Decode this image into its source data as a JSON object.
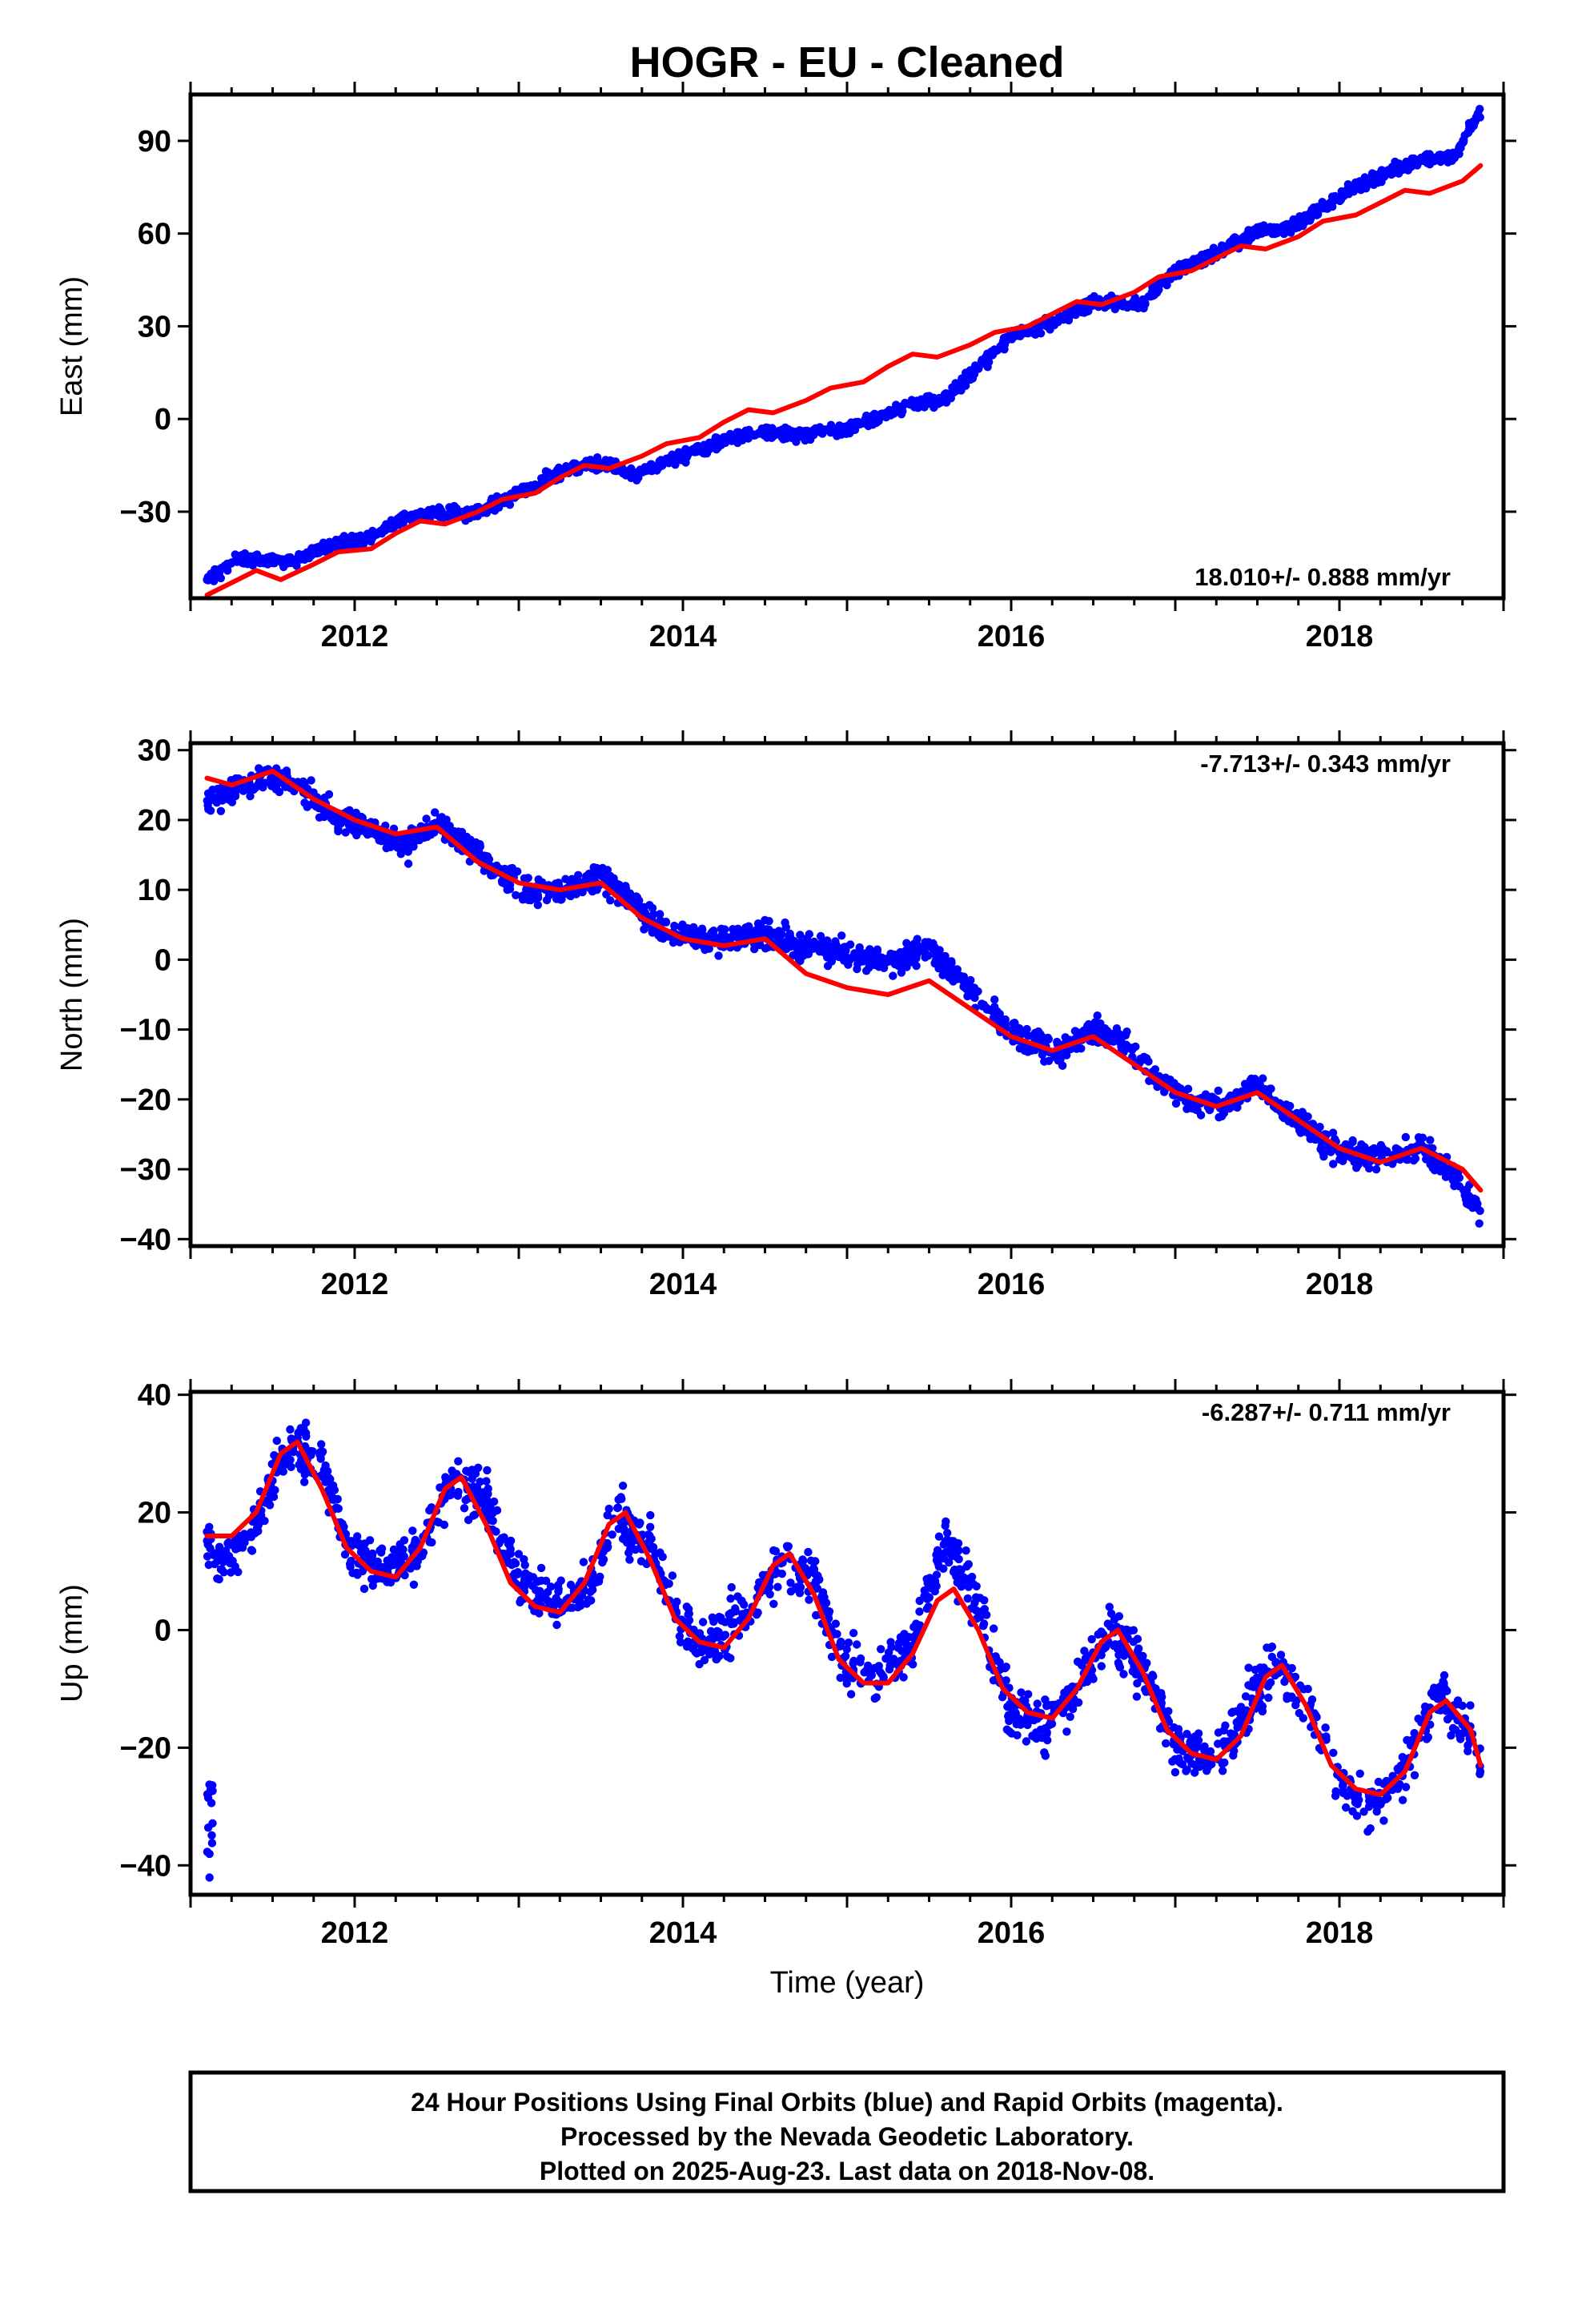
{
  "title": "HOGR  - EU - Cleaned",
  "colors": {
    "data": "#0000ff",
    "model": "#ff0000",
    "frame": "#000000"
  },
  "footer": [
    "24 Hour Positions Using Final Orbits (blue) and Rapid Orbits (magenta).",
    "Processed by the Nevada Geodetic Laboratory.",
    "Plotted on 2025-Aug-23. Last data on 2018-Nov-08."
  ],
  "chart_data": [
    {
      "type": "scatter",
      "component": "east",
      "ylabel": "East (mm)",
      "xlabel": "",
      "xlim": [
        2011.0,
        2019.0
      ],
      "ylim": [
        -58,
        105
      ],
      "xticks": [
        2012,
        2014,
        2016,
        2018
      ],
      "xtick_labels": [
        "2012",
        "2014",
        "2016",
        "2018"
      ],
      "yticks": [
        -30,
        0,
        30,
        60,
        90
      ],
      "ytick_labels": [
        "−30",
        "0",
        "30",
        "60",
        "90"
      ],
      "rate_text": "18.010+/- 0.888 mm/yr",
      "rate_position": "bottom-right",
      "data_start": 2011.1,
      "data_end": 2018.86,
      "series": [
        {
          "role": "observations",
          "color": "#0000ff",
          "x": [
            2011.1,
            2011.3,
            2011.6,
            2011.9,
            2012.1,
            2012.3,
            2012.5,
            2012.7,
            2013.0,
            2013.3,
            2013.5,
            2013.7,
            2014.0,
            2014.3,
            2014.5,
            2014.7,
            2015.0,
            2015.2,
            2015.4,
            2015.6,
            2015.8,
            2016.0,
            2016.3,
            2016.5,
            2016.8,
            2017.0,
            2017.3,
            2017.5,
            2017.7,
            2018.0,
            2018.3,
            2018.5,
            2018.7,
            2018.86
          ],
          "y": [
            -52,
            -45,
            -46,
            -40,
            -38,
            -32,
            -30,
            -31,
            -24,
            -16,
            -14,
            -18,
            -12,
            -6,
            -4,
            -5,
            -3,
            1,
            5,
            6,
            17,
            27,
            32,
            38,
            37,
            48,
            55,
            61,
            62,
            72,
            80,
            84,
            85,
            100
          ]
        },
        {
          "role": "model",
          "color": "#ff0000",
          "x": [
            2011.1,
            2011.25,
            2011.4,
            2011.55,
            2011.75,
            2011.9,
            2012.1,
            2012.25,
            2012.4,
            2012.55,
            2012.75,
            2012.9,
            2013.1,
            2013.25,
            2013.4,
            2013.55,
            2013.75,
            2013.9,
            2014.1,
            2014.25,
            2014.4,
            2014.55,
            2014.75,
            2014.9,
            2015.1,
            2015.25,
            2015.4,
            2015.55,
            2015.75,
            2015.9,
            2016.1,
            2016.25,
            2016.4,
            2016.55,
            2016.75,
            2016.9,
            2017.1,
            2017.25,
            2017.4,
            2017.55,
            2017.75,
            2017.9,
            2018.1,
            2018.25,
            2018.4,
            2018.55,
            2018.75,
            2018.86
          ],
          "y": [
            -57,
            -53,
            -49,
            -52,
            -47,
            -43,
            -42,
            -37,
            -33,
            -34,
            -30,
            -26,
            -24,
            -19,
            -15,
            -16,
            -12,
            -8,
            -6,
            -1,
            3,
            2,
            6,
            10,
            12,
            17,
            21,
            20,
            24,
            28,
            30,
            34,
            38,
            37,
            41,
            46,
            48,
            52,
            56,
            55,
            59,
            64,
            66,
            70,
            74,
            73,
            77,
            82
          ]
        }
      ]
    },
    {
      "type": "scatter",
      "component": "north",
      "ylabel": "North (mm)",
      "xlabel": "",
      "xlim": [
        2011.0,
        2019.0
      ],
      "ylim": [
        -41,
        31
      ],
      "xticks": [
        2012,
        2014,
        2016,
        2018
      ],
      "xtick_labels": [
        "2012",
        "2014",
        "2016",
        "2018"
      ],
      "yticks": [
        -40,
        -30,
        -20,
        -10,
        0,
        10,
        20,
        30
      ],
      "ytick_labels": [
        "−40",
        "−30",
        "−20",
        "−10",
        "0",
        "10",
        "20",
        "30"
      ],
      "rate_text": "-7.713+/- 0.343 mm/yr",
      "rate_position": "top-right",
      "data_start": 2011.1,
      "data_end": 2018.86,
      "series": [
        {
          "role": "observations",
          "color": "#0000ff",
          "x": [
            2011.1,
            2011.3,
            2011.5,
            2011.7,
            2011.9,
            2012.1,
            2012.3,
            2012.5,
            2012.7,
            2012.9,
            2013.1,
            2013.3,
            2013.5,
            2013.7,
            2013.9,
            2014.1,
            2014.3,
            2014.5,
            2014.7,
            2014.9,
            2015.1,
            2015.3,
            2015.5,
            2015.7,
            2015.9,
            2016.1,
            2016.3,
            2016.5,
            2016.7,
            2016.9,
            2017.1,
            2017.3,
            2017.5,
            2017.7,
            2017.9,
            2018.1,
            2018.3,
            2018.5,
            2018.7,
            2018.86
          ],
          "y": [
            23,
            25,
            26,
            24,
            20,
            19,
            16,
            20,
            16,
            12,
            10,
            10,
            12,
            8,
            4,
            3,
            3,
            4,
            2,
            1,
            0,
            0,
            2,
            -3,
            -8,
            -12,
            -13,
            -10,
            -12,
            -17,
            -20,
            -21,
            -18,
            -22,
            -26,
            -28,
            -28,
            -27,
            -31,
            -36
          ]
        },
        {
          "role": "model",
          "color": "#ff0000",
          "x": [
            2011.1,
            2011.25,
            2011.5,
            2011.75,
            2012.0,
            2012.25,
            2012.5,
            2012.75,
            2013.0,
            2013.25,
            2013.5,
            2013.75,
            2014.0,
            2014.25,
            2014.5,
            2014.75,
            2015.0,
            2015.25,
            2015.5,
            2015.75,
            2016.0,
            2016.25,
            2016.5,
            2016.75,
            2017.0,
            2017.25,
            2017.5,
            2017.75,
            2018.0,
            2018.25,
            2018.5,
            2018.75,
            2018.86
          ],
          "y": [
            26,
            25,
            27,
            23,
            20,
            18,
            19,
            14,
            11,
            10,
            11,
            6,
            3,
            2,
            3,
            -2,
            -4,
            -5,
            -3,
            -7,
            -11,
            -13,
            -11,
            -15,
            -19,
            -21,
            -19,
            -23,
            -27,
            -29,
            -27,
            -30,
            -33
          ]
        }
      ]
    },
    {
      "type": "scatter",
      "component": "up",
      "ylabel": "Up (mm)",
      "xlabel": "Time (year)",
      "xlim": [
        2011.0,
        2019.0
      ],
      "ylim": [
        -45,
        40.5
      ],
      "xticks": [
        2012,
        2014,
        2016,
        2018
      ],
      "xtick_labels": [
        "2012",
        "2014",
        "2016",
        "2018"
      ],
      "yticks": [
        -40,
        -20,
        0,
        20,
        40
      ],
      "ytick_labels": [
        "−40",
        "−20",
        "0",
        "20",
        "40"
      ],
      "rate_text": "-6.287+/- 0.711 mm/yr",
      "rate_position": "top-right",
      "data_start": 2011.1,
      "data_end": 2018.86,
      "series": [
        {
          "role": "observations",
          "color": "#0000ff",
          "x": [
            2011.1,
            2011.2,
            2011.4,
            2011.6,
            2011.8,
            2012.0,
            2012.2,
            2012.4,
            2012.6,
            2012.8,
            2013.0,
            2013.2,
            2013.4,
            2013.6,
            2013.8,
            2014.0,
            2014.2,
            2014.4,
            2014.6,
            2014.8,
            2015.0,
            2015.2,
            2015.4,
            2015.6,
            2015.8,
            2016.0,
            2016.2,
            2016.4,
            2016.6,
            2016.8,
            2017.0,
            2017.2,
            2017.4,
            2017.6,
            2017.8,
            2018.0,
            2018.2,
            2018.4,
            2018.6,
            2018.8,
            2018.86
          ],
          "y": [
            15,
            12,
            18,
            32,
            28,
            12,
            10,
            14,
            26,
            22,
            8,
            4,
            6,
            20,
            14,
            0,
            -2,
            4,
            12,
            8,
            -6,
            -8,
            -2,
            16,
            4,
            -14,
            -16,
            -10,
            0,
            -6,
            -20,
            -22,
            -16,
            -6,
            -12,
            -26,
            -30,
            -24,
            -10,
            -18,
            -24
          ]
        },
        {
          "role": "model",
          "color": "#ff0000",
          "x": [
            2011.1,
            2011.25,
            2011.4,
            2011.55,
            2011.65,
            2011.8,
            2011.95,
            2012.1,
            2012.25,
            2012.4,
            2012.55,
            2012.65,
            2012.8,
            2012.95,
            2013.1,
            2013.25,
            2013.4,
            2013.55,
            2013.65,
            2013.8,
            2013.95,
            2014.1,
            2014.25,
            2014.4,
            2014.55,
            2014.65,
            2014.8,
            2014.95,
            2015.1,
            2015.25,
            2015.4,
            2015.55,
            2015.65,
            2015.8,
            2015.95,
            2016.1,
            2016.25,
            2016.4,
            2016.55,
            2016.65,
            2016.8,
            2016.95,
            2017.1,
            2017.25,
            2017.4,
            2017.55,
            2017.65,
            2017.8,
            2017.95,
            2018.1,
            2018.25,
            2018.4,
            2018.55,
            2018.65,
            2018.8,
            2018.86
          ],
          "y": [
            16,
            16,
            20,
            30,
            32,
            24,
            14,
            10,
            9,
            14,
            24,
            26,
            18,
            8,
            4,
            3,
            8,
            18,
            20,
            12,
            2,
            -2,
            -3,
            2,
            11,
            13,
            6,
            -5,
            -9,
            -9,
            -4,
            5,
            7,
            0,
            -10,
            -14,
            -15,
            -10,
            -2,
            0,
            -7,
            -17,
            -21,
            -22,
            -18,
            -8,
            -6,
            -13,
            -23,
            -27,
            -28,
            -24,
            -14,
            -12,
            -17,
            -23
          ]
        }
      ]
    }
  ]
}
